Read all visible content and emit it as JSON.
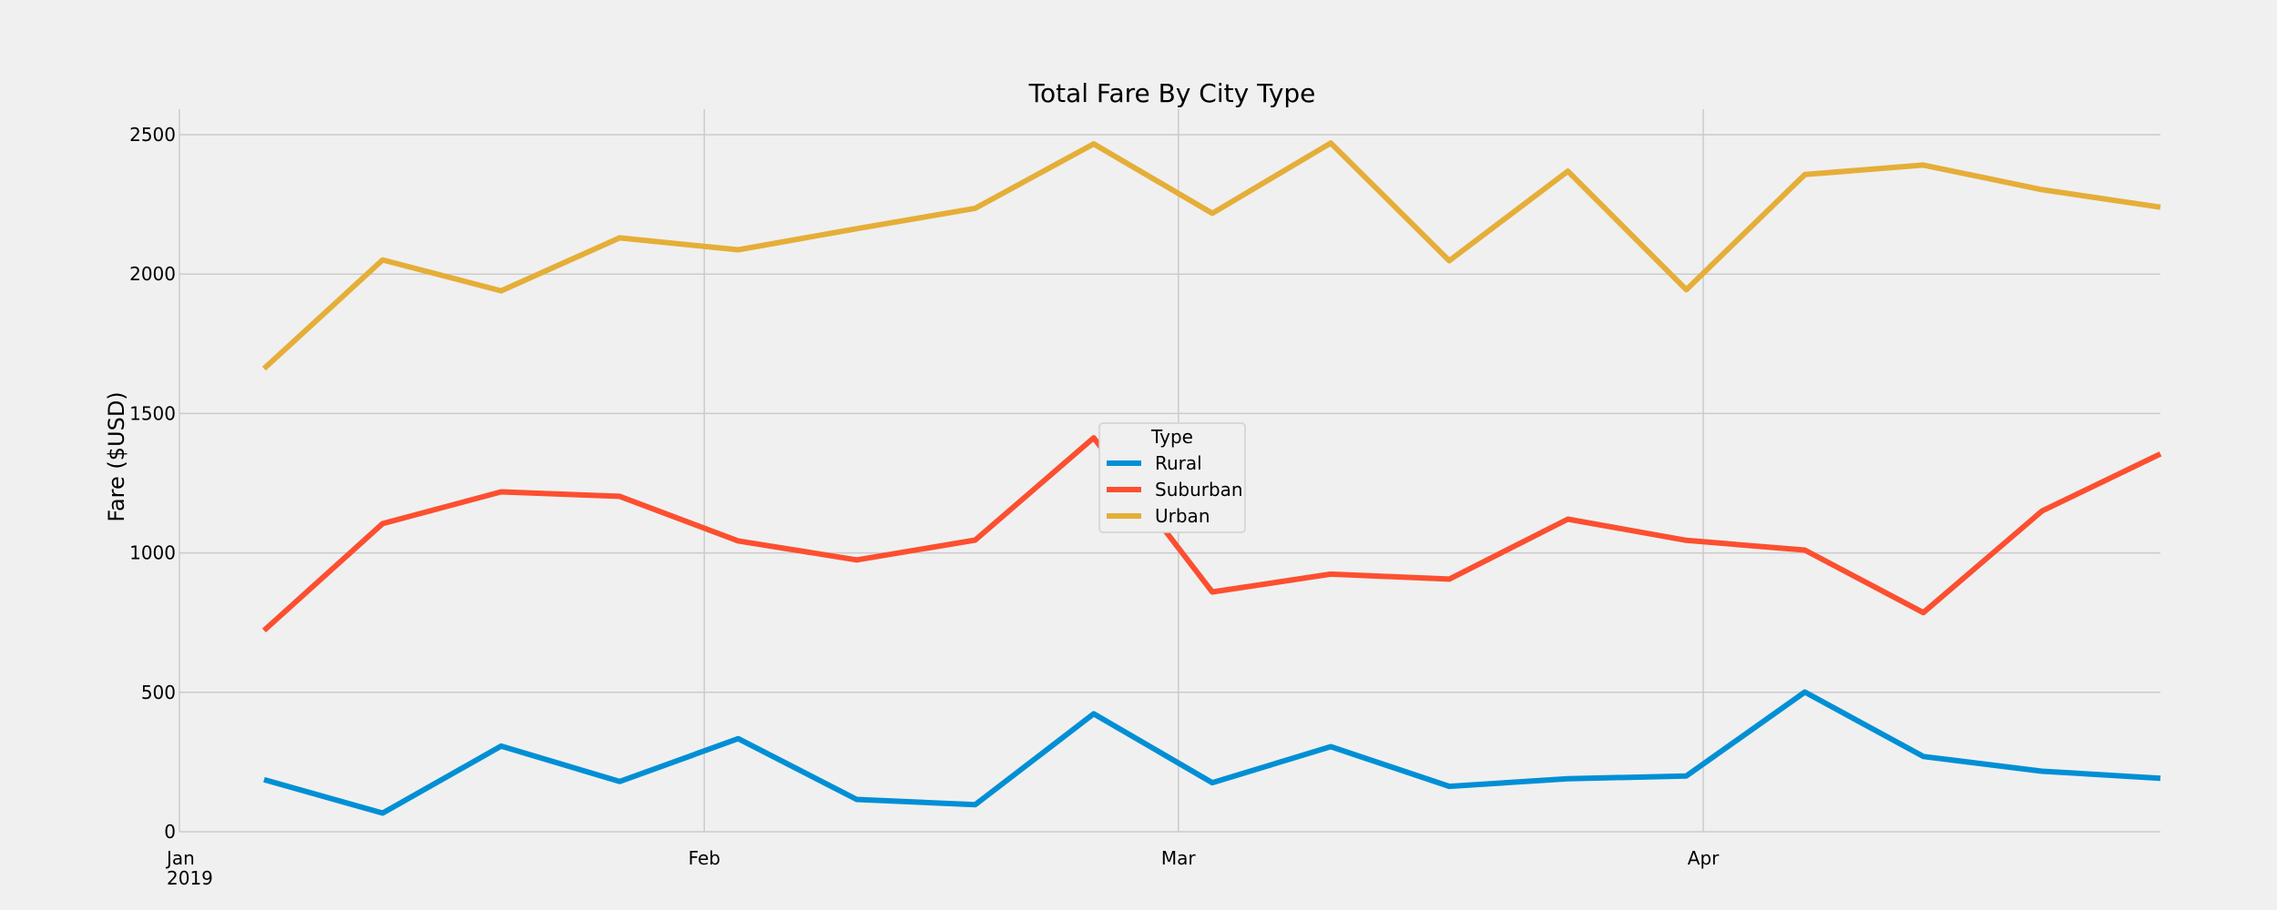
{
  "chart_data": {
    "type": "line",
    "title": "Total Fare By City Type",
    "xlabel": "",
    "ylabel": "Fare ($USD)",
    "ylim": [
      0,
      2600
    ],
    "grid": true,
    "legend": {
      "title": "Type",
      "placement": "center"
    },
    "x": [
      "2019-01-06",
      "2019-01-13",
      "2019-01-20",
      "2019-01-27",
      "2019-02-03",
      "2019-02-10",
      "2019-02-17",
      "2019-02-24",
      "2019-03-03",
      "2019-03-10",
      "2019-03-17",
      "2019-03-24",
      "2019-03-31",
      "2019-04-07",
      "2019-04-14",
      "2019-04-21",
      "2019-04-28"
    ],
    "xticks": [
      {
        "date": "2019-01-01",
        "label": "Jan",
        "sublabel": "2019"
      },
      {
        "date": "2019-02-01",
        "label": "Feb",
        "sublabel": ""
      },
      {
        "date": "2019-03-01",
        "label": "Mar",
        "sublabel": ""
      },
      {
        "date": "2019-04-01",
        "label": "Apr",
        "sublabel": ""
      }
    ],
    "yticks": [
      0,
      500,
      1000,
      1500,
      2000,
      2500
    ],
    "series": [
      {
        "name": "Rural",
        "color": "#008fd5",
        "values": [
          187,
          67,
          307,
          180,
          334,
          116,
          97,
          423,
          176,
          305,
          163,
          190,
          200,
          501,
          270,
          217,
          192
        ]
      },
      {
        "name": "Suburban",
        "color": "#fc4f30",
        "values": [
          722,
          1105,
          1219,
          1203,
          1043,
          975,
          1046,
          1413,
          860,
          924,
          906,
          1121,
          1045,
          1010,
          786,
          1150,
          1355
        ]
      },
      {
        "name": "Urban",
        "color": "#e5ae38",
        "values": [
          1661,
          2051,
          1940,
          2130,
          2087,
          2163,
          2236,
          2467,
          2218,
          2470,
          2048,
          2369,
          1944,
          2357,
          2391,
          2303,
          2240
        ]
      }
    ]
  }
}
